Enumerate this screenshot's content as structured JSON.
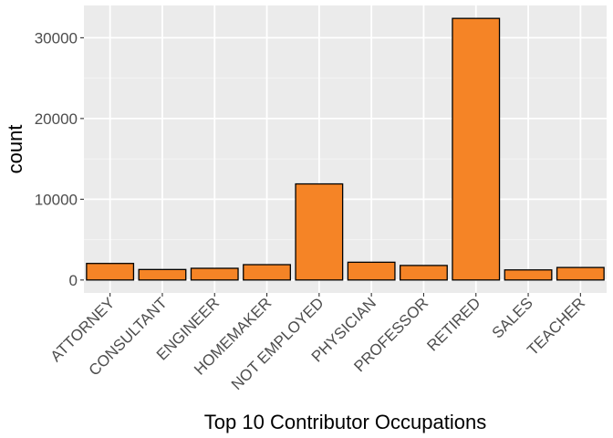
{
  "chart_data": {
    "type": "bar",
    "categories": [
      "ATTORNEY",
      "CONSULTANT",
      "ENGINEER",
      "HOMEMAKER",
      "NOT EMPLOYED",
      "PHYSICIAN",
      "PROFESSOR",
      "RETIRED",
      "SALES",
      "TEACHER"
    ],
    "values": [
      2050,
      1300,
      1450,
      1900,
      11900,
      2200,
      1800,
      32400,
      1250,
      1550
    ],
    "xlabel": "Top 10 Contributor Occupations",
    "ylabel": "count",
    "ylim": [
      -1600,
      34000
    ],
    "yticks": [
      0,
      10000,
      20000,
      30000
    ],
    "ytick_labels": [
      "0",
      "10000",
      "20000",
      "30000"
    ],
    "grid": true,
    "colors": {
      "bar_fill": "#F58426",
      "bar_stroke": "#000000",
      "panel_bg": "#EBEBEB",
      "grid_major": "#FFFFFF",
      "grid_minor": "#F5F5F5",
      "tick_text": "#4D4D4D",
      "tick_mark": "#333333"
    }
  }
}
